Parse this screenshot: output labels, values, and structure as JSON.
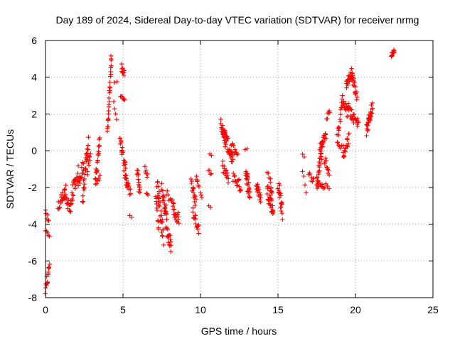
{
  "chart_data": {
    "type": "scatter",
    "title": "Day 189 of 2024, Sidereal Day-to-day VTEC variation (SDTVAR) for receiver nrmg",
    "xlabel": "GPS time / hours",
    "ylabel": "SDTVAR / TECUs",
    "xlim": [
      0,
      25
    ],
    "ylim": [
      -8,
      6
    ],
    "xticks": [
      0,
      5,
      10,
      15,
      20,
      25
    ],
    "yticks": [
      -8,
      -6,
      -4,
      -2,
      0,
      2,
      4,
      6
    ],
    "x_tick_labels": [
      "0",
      "5",
      "10",
      "15",
      "20",
      "25"
    ],
    "y_tick_labels": [
      "-8",
      "-6",
      "-4",
      "-2",
      "0",
      "2",
      "4",
      "6"
    ],
    "grid": true,
    "marker": "+",
    "color": "#ff0000",
    "segments": [
      {
        "x0": 0.0,
        "x1": 0.25,
        "y0": -7.6,
        "y1": -6.3,
        "n": 16,
        "amp": 0.25
      },
      {
        "x0": 0.0,
        "x1": 0.2,
        "y0": -3.3,
        "y1": -3.9,
        "n": 6,
        "amp": 0.2
      },
      {
        "x0": 0.0,
        "x1": 0.25,
        "y0": -4.4,
        "y1": -4.7,
        "n": 5,
        "amp": 0.1
      },
      {
        "x0": 0.8,
        "x1": 1.3,
        "y0": -3.1,
        "y1": -2.1,
        "n": 18,
        "amp": 0.35
      },
      {
        "x0": 1.2,
        "x1": 1.6,
        "y0": -2.5,
        "y1": -3.1,
        "n": 16,
        "amp": 0.3
      },
      {
        "x0": 1.6,
        "x1": 2.1,
        "y0": -2.8,
        "y1": -1.1,
        "n": 24,
        "amp": 0.45
      },
      {
        "x0": 2.1,
        "x1": 2.45,
        "y0": -1.8,
        "y1": -0.8,
        "n": 16,
        "amp": 0.3
      },
      {
        "x0": 2.4,
        "x1": 2.75,
        "y0": -2.6,
        "y1": 0.6,
        "n": 30,
        "amp": 0.45
      },
      {
        "x0": 2.7,
        "x1": 2.9,
        "y0": -1.2,
        "y1": -0.1,
        "n": 8,
        "amp": 0.3
      },
      {
        "x0": 3.2,
        "x1": 3.5,
        "y0": -1.9,
        "y1": 0.5,
        "n": 22,
        "amp": 0.35
      },
      {
        "x0": 3.3,
        "x1": 3.5,
        "y0": -1.8,
        "y1": -1.4,
        "n": 6,
        "amp": 0.15
      },
      {
        "x0": 4.0,
        "x1": 4.25,
        "y0": 0.9,
        "y1": 5.1,
        "n": 28,
        "amp": 0.3
      },
      {
        "x0": 4.4,
        "x1": 4.6,
        "y0": 2.6,
        "y1": 1.6,
        "n": 4,
        "amp": 0.1
      },
      {
        "x0": 4.45,
        "x1": 4.6,
        "y0": 3.7,
        "y1": 3.75,
        "n": 2,
        "amp": 0.05
      },
      {
        "x0": 4.9,
        "x1": 5.1,
        "y0": 4.6,
        "y1": 4.1,
        "n": 10,
        "amp": 0.25
      },
      {
        "x0": 4.85,
        "x1": 5.1,
        "y0": 2.95,
        "y1": 2.8,
        "n": 6,
        "amp": 0.1
      },
      {
        "x0": 4.8,
        "x1": 5.3,
        "y0": 0.6,
        "y1": -1.8,
        "n": 26,
        "amp": 0.35
      },
      {
        "x0": 5.1,
        "x1": 5.5,
        "y0": -1.4,
        "y1": -2.3,
        "n": 14,
        "amp": 0.3
      },
      {
        "x0": 5.45,
        "x1": 5.55,
        "y0": -3.5,
        "y1": -3.6,
        "n": 2,
        "amp": 0.05
      },
      {
        "x0": 5.9,
        "x1": 6.1,
        "y0": -0.9,
        "y1": -2.4,
        "n": 14,
        "amp": 0.3
      },
      {
        "x0": 6.4,
        "x1": 6.6,
        "y0": -1.0,
        "y1": -1.4,
        "n": 6,
        "amp": 0.15
      },
      {
        "x0": 6.5,
        "x1": 6.6,
        "y0": -2.3,
        "y1": -2.5,
        "n": 3,
        "amp": 0.1
      },
      {
        "x0": 7.1,
        "x1": 7.3,
        "y0": -2.4,
        "y1": -4.2,
        "n": 10,
        "amp": 0.3
      },
      {
        "x0": 7.2,
        "x1": 7.6,
        "y0": -1.8,
        "y1": -4.7,
        "n": 30,
        "amp": 0.5
      },
      {
        "x0": 7.5,
        "x1": 7.8,
        "y0": -2.0,
        "y1": -3.5,
        "n": 16,
        "amp": 0.35
      },
      {
        "x0": 7.7,
        "x1": 8.1,
        "y0": -3.5,
        "y1": -5.3,
        "n": 26,
        "amp": 0.45
      },
      {
        "x0": 7.8,
        "x1": 8.2,
        "y0": -2.3,
        "y1": -2.9,
        "n": 8,
        "amp": 0.2
      },
      {
        "x0": 8.2,
        "x1": 8.6,
        "y0": -3.0,
        "y1": -3.8,
        "n": 20,
        "amp": 0.35
      },
      {
        "x0": 9.4,
        "x1": 9.7,
        "y0": -1.8,
        "y1": -2.8,
        "n": 14,
        "amp": 0.3
      },
      {
        "x0": 9.5,
        "x1": 9.9,
        "y0": -3.4,
        "y1": -4.2,
        "n": 16,
        "amp": 0.3
      },
      {
        "x0": 9.7,
        "x1": 9.9,
        "y0": -1.4,
        "y1": -2.0,
        "n": 6,
        "amp": 0.2
      },
      {
        "x0": 10.0,
        "x1": 10.1,
        "y0": -2.2,
        "y1": -2.5,
        "n": 3,
        "amp": 0.1
      },
      {
        "x0": 10.6,
        "x1": 10.7,
        "y0": -0.2,
        "y1": -0.2,
        "n": 2,
        "amp": 0.05
      },
      {
        "x0": 10.5,
        "x1": 10.7,
        "y0": -1.0,
        "y1": -1.3,
        "n": 4,
        "amp": 0.1
      },
      {
        "x0": 10.55,
        "x1": 10.65,
        "y0": -3.0,
        "y1": -3.1,
        "n": 2,
        "amp": 0.05
      },
      {
        "x0": 11.3,
        "x1": 11.6,
        "y0": 1.5,
        "y1": 0.5,
        "n": 18,
        "amp": 0.3
      },
      {
        "x0": 11.5,
        "x1": 12.1,
        "y0": 1.0,
        "y1": -0.6,
        "n": 32,
        "amp": 0.4
      },
      {
        "x0": 11.4,
        "x1": 11.8,
        "y0": -0.8,
        "y1": -1.6,
        "n": 16,
        "amp": 0.3
      },
      {
        "x0": 12.0,
        "x1": 12.4,
        "y0": 0.3,
        "y1": -0.2,
        "n": 10,
        "amp": 0.25
      },
      {
        "x0": 12.1,
        "x1": 12.6,
        "y0": -1.4,
        "y1": -2.0,
        "n": 16,
        "amp": 0.3
      },
      {
        "x0": 12.9,
        "x1": 13.2,
        "y0": -1.1,
        "y1": -2.4,
        "n": 24,
        "amp": 0.45
      },
      {
        "x0": 12.9,
        "x1": 13.0,
        "y0": 0.1,
        "y1": 0.1,
        "n": 2,
        "amp": 0.05
      },
      {
        "x0": 13.6,
        "x1": 13.9,
        "y0": -1.9,
        "y1": -2.6,
        "n": 16,
        "amp": 0.3
      },
      {
        "x0": 14.3,
        "x1": 14.5,
        "y0": -1.2,
        "y1": -1.5,
        "n": 4,
        "amp": 0.1
      },
      {
        "x0": 14.3,
        "x1": 14.7,
        "y0": -2.1,
        "y1": -3.3,
        "n": 26,
        "amp": 0.4
      },
      {
        "x0": 14.5,
        "x1": 14.6,
        "y0": -1.9,
        "y1": -2.4,
        "n": 8,
        "amp": 0.3
      },
      {
        "x0": 15.0,
        "x1": 15.3,
        "y0": -1.8,
        "y1": -3.4,
        "n": 20,
        "amp": 0.45
      },
      {
        "x0": 16.6,
        "x1": 16.8,
        "y0": -1.0,
        "y1": -2.2,
        "n": 4,
        "amp": 0.2
      },
      {
        "x0": 16.6,
        "x1": 16.7,
        "y0": -0.2,
        "y1": -0.3,
        "n": 2,
        "amp": 0.05
      },
      {
        "x0": 17.0,
        "x1": 17.3,
        "y0": -1.3,
        "y1": -1.7,
        "n": 8,
        "amp": 0.2
      },
      {
        "x0": 17.5,
        "x1": 17.9,
        "y0": -1.8,
        "y1": 0.4,
        "n": 30,
        "amp": 0.45
      },
      {
        "x0": 17.7,
        "x1": 18.1,
        "y0": 0.1,
        "y1": 0.9,
        "n": 16,
        "amp": 0.3
      },
      {
        "x0": 17.5,
        "x1": 18.0,
        "y0": -1.8,
        "y1": -2.0,
        "n": 12,
        "amp": 0.2
      },
      {
        "x0": 18.0,
        "x1": 18.3,
        "y0": -0.4,
        "y1": -1.4,
        "n": 10,
        "amp": 0.3
      },
      {
        "x0": 18.15,
        "x1": 18.35,
        "y0": 1.8,
        "y1": 2.1,
        "n": 6,
        "amp": 0.15
      },
      {
        "x0": 18.1,
        "x1": 18.3,
        "y0": -1.8,
        "y1": -2.0,
        "n": 3,
        "amp": 0.1
      },
      {
        "x0": 18.8,
        "x1": 19.1,
        "y0": 0.5,
        "y1": 2.3,
        "n": 14,
        "amp": 0.4
      },
      {
        "x0": 18.9,
        "x1": 19.2,
        "y0": 0.3,
        "y1": 0.2,
        "n": 5,
        "amp": 0.15
      },
      {
        "x0": 19.1,
        "x1": 19.5,
        "y0": 2.9,
        "y1": 2.0,
        "n": 16,
        "amp": 0.3
      },
      {
        "x0": 19.2,
        "x1": 19.6,
        "y0": -0.3,
        "y1": 0.8,
        "n": 16,
        "amp": 0.35
      },
      {
        "x0": 19.4,
        "x1": 19.8,
        "y0": 3.6,
        "y1": 4.3,
        "n": 22,
        "amp": 0.25
      },
      {
        "x0": 19.5,
        "x1": 19.9,
        "y0": 2.4,
        "y1": 1.7,
        "n": 16,
        "amp": 0.3
      },
      {
        "x0": 19.8,
        "x1": 20.1,
        "y0": 4.1,
        "y1": 2.9,
        "n": 16,
        "amp": 0.3
      },
      {
        "x0": 19.9,
        "x1": 20.2,
        "y0": 2.0,
        "y1": 1.4,
        "n": 12,
        "amp": 0.25
      },
      {
        "x0": 20.7,
        "x1": 21.1,
        "y0": 1.1,
        "y1": 2.4,
        "n": 28,
        "amp": 0.3
      },
      {
        "x0": 22.3,
        "x1": 22.5,
        "y0": 5.2,
        "y1": 5.5,
        "n": 12,
        "amp": 0.12
      }
    ]
  }
}
